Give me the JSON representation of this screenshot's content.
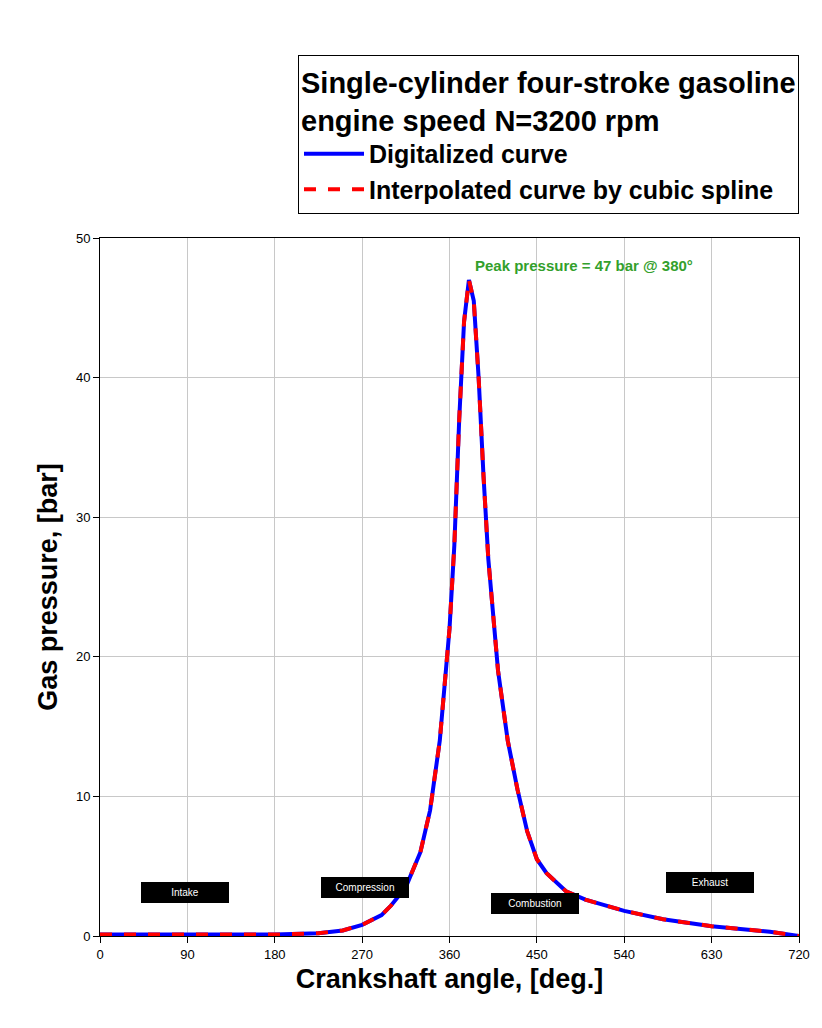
{
  "chart_data": {
    "type": "line",
    "title": "Single-cylinder four-stroke gasoline engine speed N=3200 rpm",
    "x_label": "Crankshaft angle, [deg.]",
    "y_label": "Gas pressure, [bar]",
    "x": [
      0,
      45,
      90,
      135,
      180,
      225,
      250,
      270,
      290,
      300,
      315,
      330,
      340,
      350,
      360,
      365,
      370,
      375,
      380,
      385,
      390,
      395,
      400,
      410,
      420,
      430,
      440,
      450,
      460,
      480,
      500,
      540,
      580,
      630,
      660,
      690,
      720
    ],
    "series": [
      {
        "name": "Digitalized curve",
        "color": "#0000ff",
        "line_style": "solid",
        "values": [
          0.1,
          0.1,
          0.1,
          0.1,
          0.1,
          0.2,
          0.4,
          0.8,
          1.5,
          2.2,
          3.5,
          6,
          9,
          14,
          22,
          28,
          37,
          44,
          47,
          45.5,
          40,
          33,
          27,
          19,
          14,
          10.5,
          7.5,
          5.5,
          4.5,
          3.2,
          2.6,
          1.8,
          1.2,
          0.7,
          0.5,
          0.3,
          0
        ]
      },
      {
        "name": "Interpolated curve by cubic spline",
        "color": "#ff0000",
        "line_style": "dash",
        "values": [
          0.1,
          0.1,
          0.1,
          0.1,
          0.1,
          0.2,
          0.4,
          0.8,
          1.5,
          2.2,
          3.5,
          6,
          9,
          14,
          22,
          28,
          37,
          44,
          47,
          45.5,
          40,
          33,
          27,
          19,
          14,
          10.5,
          7.5,
          5.5,
          4.5,
          3.2,
          2.6,
          1.8,
          1.2,
          0.7,
          0.5,
          0.3,
          0
        ]
      }
    ],
    "xlim": [
      0,
      720
    ],
    "xticks": [
      0,
      90,
      180,
      270,
      360,
      450,
      540,
      630,
      720
    ],
    "ylim": [
      0,
      50
    ],
    "yticks": [
      0,
      10,
      20,
      30,
      40,
      50
    ],
    "grid": true,
    "legend": "top right",
    "annotations": [
      {
        "text": "Peak pressure = 47 bar @ 380°",
        "x": 380,
        "y": 47,
        "color": "#33a02c"
      },
      {
        "text": "Intake",
        "x": 88,
        "y": 3.1,
        "color": "#000000"
      },
      {
        "text": "Compression",
        "x": 273,
        "y": 3.5,
        "color": "#000000"
      },
      {
        "text": "Combustion",
        "x": 448,
        "y": 2.3,
        "color": "#000000"
      },
      {
        "text": "Exhaust",
        "x": 628,
        "y": 3.8,
        "color": "#000000"
      }
    ]
  }
}
